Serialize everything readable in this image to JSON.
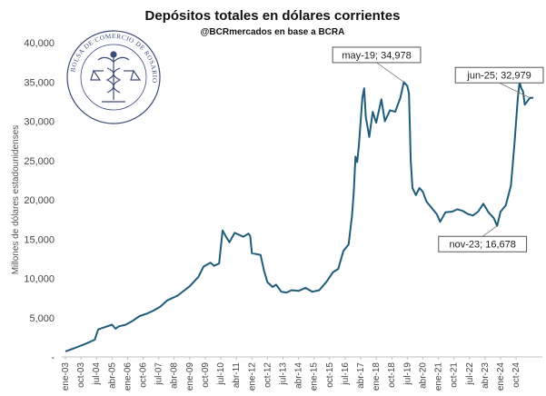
{
  "chart_data": {
    "type": "line",
    "title": "Depósitos totales en dólares corrientes",
    "subtitle": "@BCRmercados en base a BCRA",
    "ylabel": "Millones de dólares estadounidenses",
    "xlabel": "",
    "ylim": [
      0,
      40000
    ],
    "yticks": [
      "-",
      "5,000",
      "10,000",
      "15,000",
      "20,000",
      "25,000",
      "30,000",
      "35,000",
      "40,000"
    ],
    "ytick_values": [
      0,
      5000,
      10000,
      15000,
      20000,
      25000,
      30000,
      35000,
      40000
    ],
    "xlim": [
      "2003-01",
      "2025-09"
    ],
    "xticks": [
      {
        "label": "ene-03",
        "date": "2003-01"
      },
      {
        "label": "oct-03",
        "date": "2003-10"
      },
      {
        "label": "jul-04",
        "date": "2004-07"
      },
      {
        "label": "abr-05",
        "date": "2005-04"
      },
      {
        "label": "ene-06",
        "date": "2006-01"
      },
      {
        "label": "oct-06",
        "date": "2006-10"
      },
      {
        "label": "jul-07",
        "date": "2007-07"
      },
      {
        "label": "abr-08",
        "date": "2008-04"
      },
      {
        "label": "ene-09",
        "date": "2009-01"
      },
      {
        "label": "oct-09",
        "date": "2009-10"
      },
      {
        "label": "jul-10",
        "date": "2010-07"
      },
      {
        "label": "abr-11",
        "date": "2011-04"
      },
      {
        "label": "ene-12",
        "date": "2012-01"
      },
      {
        "label": "oct-12",
        "date": "2012-10"
      },
      {
        "label": "jul-13",
        "date": "2013-07"
      },
      {
        "label": "abr-14",
        "date": "2014-04"
      },
      {
        "label": "ene-15",
        "date": "2015-01"
      },
      {
        "label": "oct-15",
        "date": "2015-10"
      },
      {
        "label": "jul-16",
        "date": "2016-07"
      },
      {
        "label": "abr-17",
        "date": "2017-04"
      },
      {
        "label": "ene-18",
        "date": "2018-01"
      },
      {
        "label": "oct-18",
        "date": "2018-10"
      },
      {
        "label": "jul-19",
        "date": "2019-07"
      },
      {
        "label": "abr-20",
        "date": "2020-04"
      },
      {
        "label": "ene-21",
        "date": "2021-01"
      },
      {
        "label": "oct-21",
        "date": "2021-10"
      },
      {
        "label": "jul-22",
        "date": "2022-07"
      },
      {
        "label": "abr-23",
        "date": "2023-04"
      },
      {
        "label": "ene-24",
        "date": "2024-01"
      },
      {
        "label": "oct-24",
        "date": "2024-10"
      }
    ],
    "grid": false,
    "legend": "none",
    "line_color": "#1f5c7a",
    "series": [
      {
        "points": [
          [
            "2003-01",
            700
          ],
          [
            "2003-06",
            1100
          ],
          [
            "2004-01",
            1700
          ],
          [
            "2004-06",
            2200
          ],
          [
            "2004-08",
            3500
          ],
          [
            "2004-12",
            3800
          ],
          [
            "2005-04",
            4100
          ],
          [
            "2005-06",
            3600
          ],
          [
            "2005-08",
            3900
          ],
          [
            "2005-12",
            4100
          ],
          [
            "2006-04",
            4600
          ],
          [
            "2006-08",
            5200
          ],
          [
            "2006-12",
            5500
          ],
          [
            "2007-04",
            5900
          ],
          [
            "2007-08",
            6400
          ],
          [
            "2007-12",
            7200
          ],
          [
            "2008-06",
            7800
          ],
          [
            "2008-10",
            8500
          ],
          [
            "2009-01",
            9000
          ],
          [
            "2009-06",
            10200
          ],
          [
            "2009-09",
            11500
          ],
          [
            "2010-01",
            12000
          ],
          [
            "2010-03",
            11600
          ],
          [
            "2010-06",
            11900
          ],
          [
            "2010-08",
            16100
          ],
          [
            "2010-10",
            15300
          ],
          [
            "2010-12",
            14600
          ],
          [
            "2011-03",
            15800
          ],
          [
            "2011-05",
            15600
          ],
          [
            "2011-08",
            15300
          ],
          [
            "2011-11",
            15700
          ],
          [
            "2011-12",
            15400
          ],
          [
            "2012-01",
            13200
          ],
          [
            "2012-06",
            13000
          ],
          [
            "2012-08",
            11000
          ],
          [
            "2012-10",
            9500
          ],
          [
            "2013-01",
            8900
          ],
          [
            "2013-03",
            9200
          ],
          [
            "2013-06",
            8300
          ],
          [
            "2013-09",
            8200
          ],
          [
            "2013-12",
            8500
          ],
          [
            "2014-04",
            8400
          ],
          [
            "2014-08",
            8800
          ],
          [
            "2014-12",
            8300
          ],
          [
            "2015-04",
            8500
          ],
          [
            "2015-08",
            9500
          ],
          [
            "2015-12",
            10800
          ],
          [
            "2016-03",
            11200
          ],
          [
            "2016-06",
            13500
          ],
          [
            "2016-09",
            14300
          ],
          [
            "2016-11",
            18000
          ],
          [
            "2016-12",
            21000
          ],
          [
            "2017-01",
            25500
          ],
          [
            "2017-02",
            24800
          ],
          [
            "2017-03",
            27000
          ],
          [
            "2017-05",
            33000
          ],
          [
            "2017-06",
            34200
          ],
          [
            "2017-07",
            30500
          ],
          [
            "2017-09",
            28000
          ],
          [
            "2017-11",
            31200
          ],
          [
            "2018-01",
            29800
          ],
          [
            "2018-04",
            32800
          ],
          [
            "2018-06",
            30000
          ],
          [
            "2018-09",
            31400
          ],
          [
            "2018-12",
            31200
          ],
          [
            "2019-03",
            33000
          ],
          [
            "2019-05",
            34978
          ],
          [
            "2019-07",
            34500
          ],
          [
            "2019-08",
            33500
          ],
          [
            "2019-09",
            25000
          ],
          [
            "2019-10",
            21500
          ],
          [
            "2019-12",
            20600
          ],
          [
            "2020-02",
            21500
          ],
          [
            "2020-04",
            21000
          ],
          [
            "2020-06",
            19800
          ],
          [
            "2020-09",
            19000
          ],
          [
            "2020-12",
            18200
          ],
          [
            "2021-02",
            17200
          ],
          [
            "2021-05",
            18400
          ],
          [
            "2021-09",
            18500
          ],
          [
            "2021-12",
            18800
          ],
          [
            "2022-03",
            18600
          ],
          [
            "2022-06",
            18200
          ],
          [
            "2022-09",
            18000
          ],
          [
            "2022-12",
            18500
          ],
          [
            "2023-03",
            19500
          ],
          [
            "2023-06",
            18400
          ],
          [
            "2023-09",
            17700
          ],
          [
            "2023-11",
            16678
          ],
          [
            "2024-01",
            18500
          ],
          [
            "2024-04",
            19300
          ],
          [
            "2024-07",
            21800
          ],
          [
            "2024-09",
            27000
          ],
          [
            "2024-11",
            33000
          ],
          [
            "2024-12",
            35000
          ],
          [
            "2025-01",
            34200
          ],
          [
            "2025-02",
            33800
          ],
          [
            "2025-03",
            32100
          ],
          [
            "2025-06",
            32979
          ],
          [
            "2025-08",
            33000
          ]
        ]
      }
    ],
    "annotations": [
      {
        "text": "may-19; 34,978",
        "date": "2019-05",
        "value": 34978
      },
      {
        "text": "jun-25; 32,979",
        "date": "2025-06",
        "value": 32979
      },
      {
        "text": "nov-23; 16,678",
        "date": "2023-11",
        "value": 16678
      }
    ]
  },
  "logo": {
    "text": "BOLSA DE COMERCIO DE ROSARIO",
    "color": "#3d4a78",
    "icon": "caduceus-seal-icon"
  }
}
